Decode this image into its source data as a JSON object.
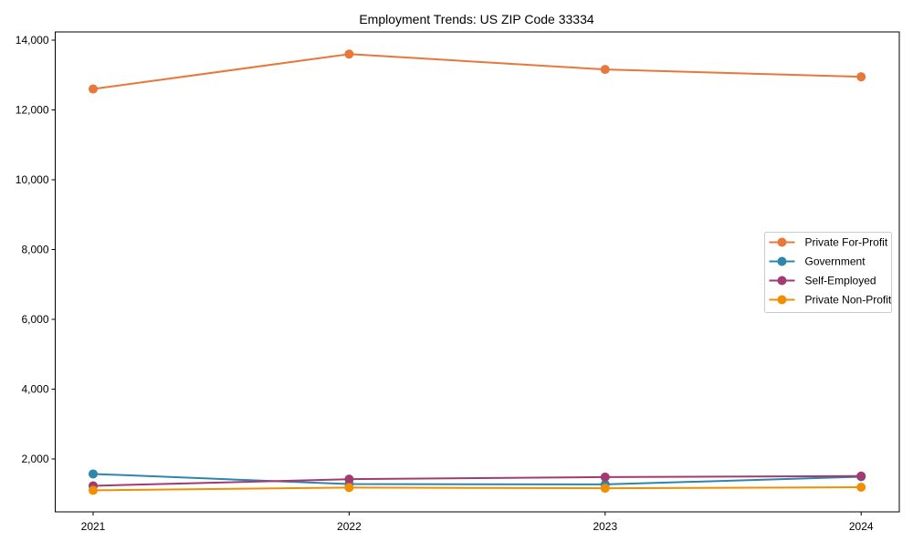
{
  "chart_data": {
    "type": "line",
    "title": "Employment Trends: US ZIP Code 33334",
    "xlabel": "",
    "ylabel": "",
    "x": [
      "2021",
      "2022",
      "2023",
      "2024"
    ],
    "categories": [
      "2021",
      "2022",
      "2023",
      "2024"
    ],
    "series": [
      {
        "name": "Private For-Profit",
        "color": "#E8773A",
        "values": [
          12600,
          13600,
          13160,
          12950
        ]
      },
      {
        "name": "Government",
        "color": "#2E86AB",
        "values": [
          1570,
          1280,
          1270,
          1490
        ]
      },
      {
        "name": "Self-Employed",
        "color": "#A23B72",
        "values": [
          1230,
          1420,
          1480,
          1510
        ]
      },
      {
        "name": "Private Non-Profit",
        "color": "#F18F01",
        "values": [
          1100,
          1180,
          1160,
          1190
        ]
      }
    ],
    "yticks": [
      2000,
      4000,
      6000,
      8000,
      10000,
      12000,
      14000
    ],
    "ytick_labels": [
      "2,000",
      "4,000",
      "6,000",
      "8,000",
      "10,000",
      "12,000",
      "14,000"
    ],
    "ylim": [
      540,
      14240
    ],
    "grid": false,
    "legend_position": "center right",
    "markers": "circle"
  }
}
